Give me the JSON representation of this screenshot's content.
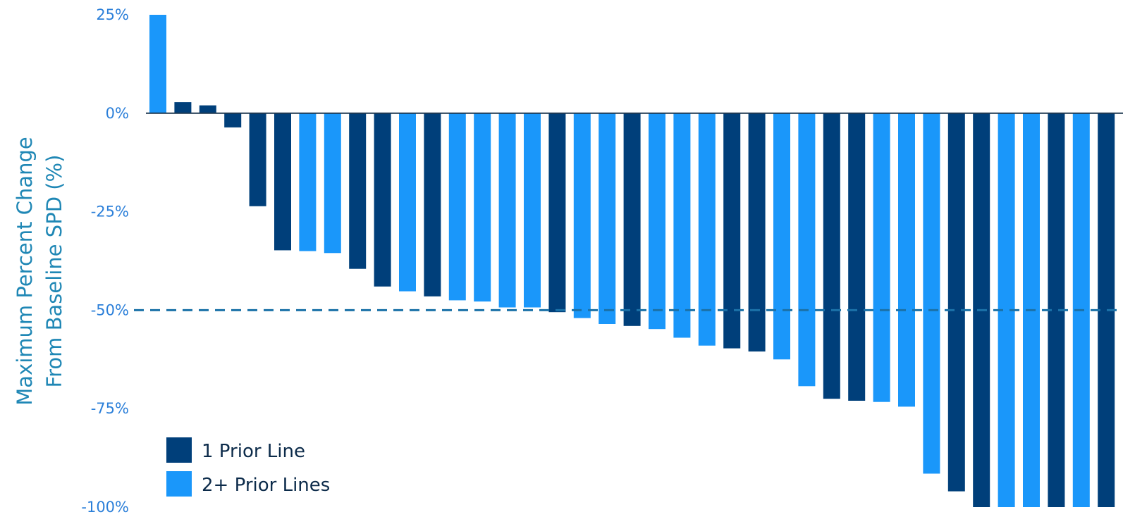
{
  "chart_data": {
    "type": "bar",
    "title": "",
    "ylabel_lines": [
      "Maximum Percent Change",
      "From Baseline SPD (%)"
    ],
    "xlabel": "",
    "ylim": [
      -100,
      25
    ],
    "yticks": [
      25,
      0,
      -25,
      -50,
      -75,
      -100
    ],
    "ytick_labels": [
      "25%",
      "0%",
      "-25%",
      "-50%",
      "-75%",
      "-100%"
    ],
    "reference_line": {
      "value": -50,
      "style": "dashed"
    },
    "series": [
      {
        "name": "1 Prior Line",
        "color": "#003f7a"
      },
      {
        "name": "2+ Prior Lines",
        "color": "#1a97fa"
      }
    ],
    "bars": [
      {
        "value": 25,
        "series": 1
      },
      {
        "value": 2.8,
        "series": 0
      },
      {
        "value": 2.0,
        "series": 0
      },
      {
        "value": -3.6,
        "series": 0
      },
      {
        "value": -23.6,
        "series": 0
      },
      {
        "value": -34.8,
        "series": 0
      },
      {
        "value": -35.0,
        "series": 1
      },
      {
        "value": -35.5,
        "series": 1
      },
      {
        "value": -39.5,
        "series": 0
      },
      {
        "value": -44.0,
        "series": 0
      },
      {
        "value": -45.2,
        "series": 1
      },
      {
        "value": -46.5,
        "series": 0
      },
      {
        "value": -47.5,
        "series": 1
      },
      {
        "value": -47.8,
        "series": 1
      },
      {
        "value": -49.3,
        "series": 1
      },
      {
        "value": -49.3,
        "series": 1
      },
      {
        "value": -50.5,
        "series": 0
      },
      {
        "value": -52.0,
        "series": 1
      },
      {
        "value": -53.5,
        "series": 1
      },
      {
        "value": -54.0,
        "series": 0
      },
      {
        "value": -54.8,
        "series": 1
      },
      {
        "value": -57.0,
        "series": 1
      },
      {
        "value": -59.0,
        "series": 1
      },
      {
        "value": -59.7,
        "series": 0
      },
      {
        "value": -60.5,
        "series": 0
      },
      {
        "value": -62.5,
        "series": 1
      },
      {
        "value": -69.3,
        "series": 1
      },
      {
        "value": -72.5,
        "series": 0
      },
      {
        "value": -73.0,
        "series": 0
      },
      {
        "value": -73.3,
        "series": 1
      },
      {
        "value": -74.5,
        "series": 1
      },
      {
        "value": -91.5,
        "series": 1
      },
      {
        "value": -96.0,
        "series": 0
      },
      {
        "value": -100,
        "series": 0
      },
      {
        "value": -100,
        "series": 1
      },
      {
        "value": -100,
        "series": 1
      },
      {
        "value": -100,
        "series": 0
      },
      {
        "value": -100,
        "series": 1
      },
      {
        "value": -100,
        "series": 0
      }
    ],
    "grid": false,
    "legend_position": "bottom-left"
  },
  "colors": {
    "axis_line": "#1f3850",
    "reference_line": "#1b72a8",
    "tick_text": "#2b7fd9",
    "axis_title": "#1f87b5",
    "legend_text": "#0c2b4a"
  }
}
